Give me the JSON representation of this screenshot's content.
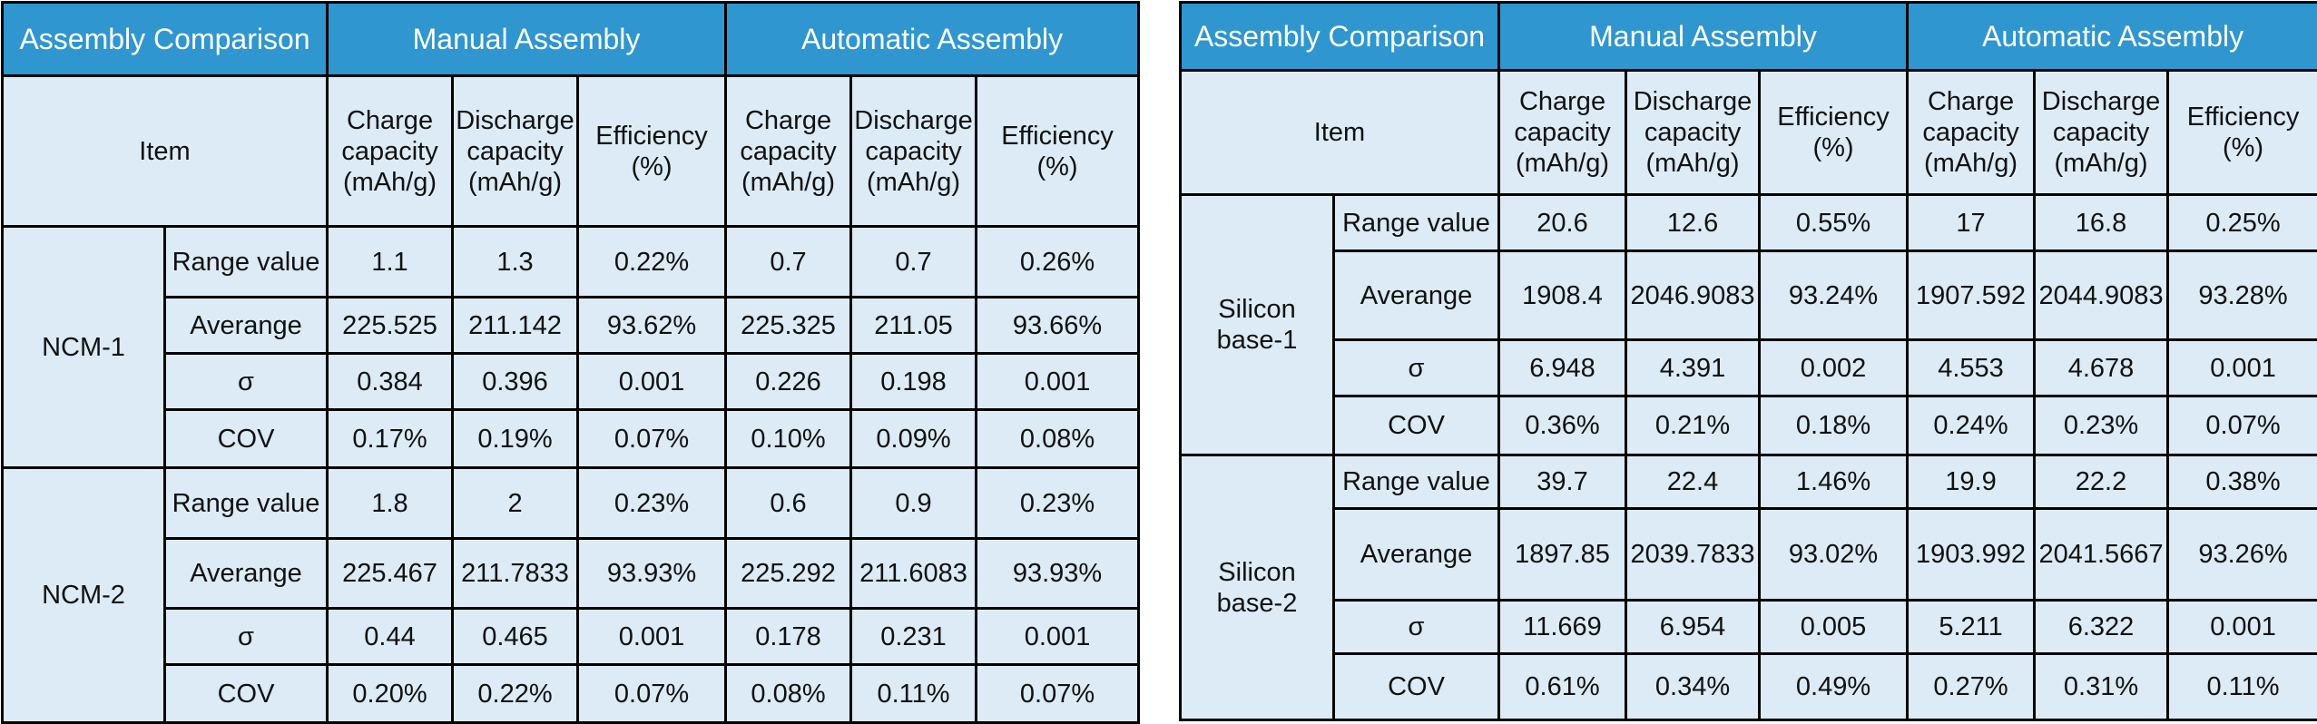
{
  "tables": [
    {
      "header": [
        "Assembly Comparison",
        "Manual Assembly",
        "Automatic Assembly"
      ],
      "item": "Item",
      "columns": [
        "Charge capacity (mAh/g)",
        "Discharge capacity (mAh/g)",
        "Efficiency (%)",
        "Charge capacity (mAh/g)",
        "Discharge capacity (mAh/g)",
        "Efficiency (%)"
      ],
      "groups": [
        {
          "label": "NCM-1",
          "rows": [
            {
              "name": "Range value",
              "values": [
                "1.1",
                "1.3",
                "0.22%",
                "0.7",
                "0.7",
                "0.26%"
              ]
            },
            {
              "name": "Averange",
              "values": [
                "225.525",
                "211.142",
                "93.62%",
                "225.325",
                "211.05",
                "93.66%"
              ]
            },
            {
              "name": "σ",
              "values": [
                "0.384",
                "0.396",
                "0.001",
                "0.226",
                "0.198",
                "0.001"
              ]
            },
            {
              "name": "COV",
              "values": [
                "0.17%",
                "0.19%",
                "0.07%",
                "0.10%",
                "0.09%",
                "0.08%"
              ]
            }
          ]
        },
        {
          "label": "NCM-2",
          "rows": [
            {
              "name": "Range value",
              "values": [
                "1.8",
                "2",
                "0.23%",
                "0.6",
                "0.9",
                "0.23%"
              ]
            },
            {
              "name": "Averange",
              "values": [
                "225.467",
                "211.7833",
                "93.93%",
                "225.292",
                "211.6083",
                "93.93%"
              ]
            },
            {
              "name": "σ",
              "values": [
                "0.44",
                "0.465",
                "0.001",
                "0.178",
                "0.231",
                "0.001"
              ]
            },
            {
              "name": "COV",
              "values": [
                "0.20%",
                "0.22%",
                "0.07%",
                "0.08%",
                "0.11%",
                "0.07%"
              ]
            }
          ]
        }
      ]
    },
    {
      "header": [
        "Assembly Comparison",
        "Manual Assembly",
        "Automatic Assembly"
      ],
      "item": "Item",
      "columns": [
        "Charge capacity (mAh/g)",
        "Discharge capacity (mAh/g)",
        "Efficiency (%)",
        "Charge capacity (mAh/g)",
        "Discharge capacity (mAh/g)",
        "Efficiency (%)"
      ],
      "groups": [
        {
          "label": "Silicon base-1",
          "rows": [
            {
              "name": "Range value",
              "values": [
                "20.6",
                "12.6",
                "0.55%",
                "17",
                "16.8",
                "0.25%"
              ]
            },
            {
              "name": "Averange",
              "values": [
                "1908.4",
                "2046.9083",
                "93.24%",
                "1907.592",
                "2044.9083",
                "93.28%"
              ]
            },
            {
              "name": "σ",
              "values": [
                "6.948",
                "4.391",
                "0.002",
                "4.553",
                "4.678",
                "0.001"
              ]
            },
            {
              "name": "COV",
              "values": [
                "0.36%",
                "0.21%",
                "0.18%",
                "0.24%",
                "0.23%",
                "0.07%"
              ]
            }
          ]
        },
        {
          "label": "Silicon base-2",
          "rows": [
            {
              "name": "Range value",
              "values": [
                "39.7",
                "22.4",
                "1.46%",
                "19.9",
                "22.2",
                "0.38%"
              ]
            },
            {
              "name": "Averange",
              "values": [
                "1897.85",
                "2039.7833",
                "93.02%",
                "1903.992",
                "2041.5667",
                "93.26%"
              ]
            },
            {
              "name": "σ",
              "values": [
                "11.669",
                "6.954",
                "0.005",
                "5.211",
                "6.322",
                "0.001"
              ]
            },
            {
              "name": "COV",
              "values": [
                "0.61%",
                "0.34%",
                "0.49%",
                "0.27%",
                "0.31%",
                "0.11%"
              ]
            }
          ]
        }
      ]
    }
  ]
}
